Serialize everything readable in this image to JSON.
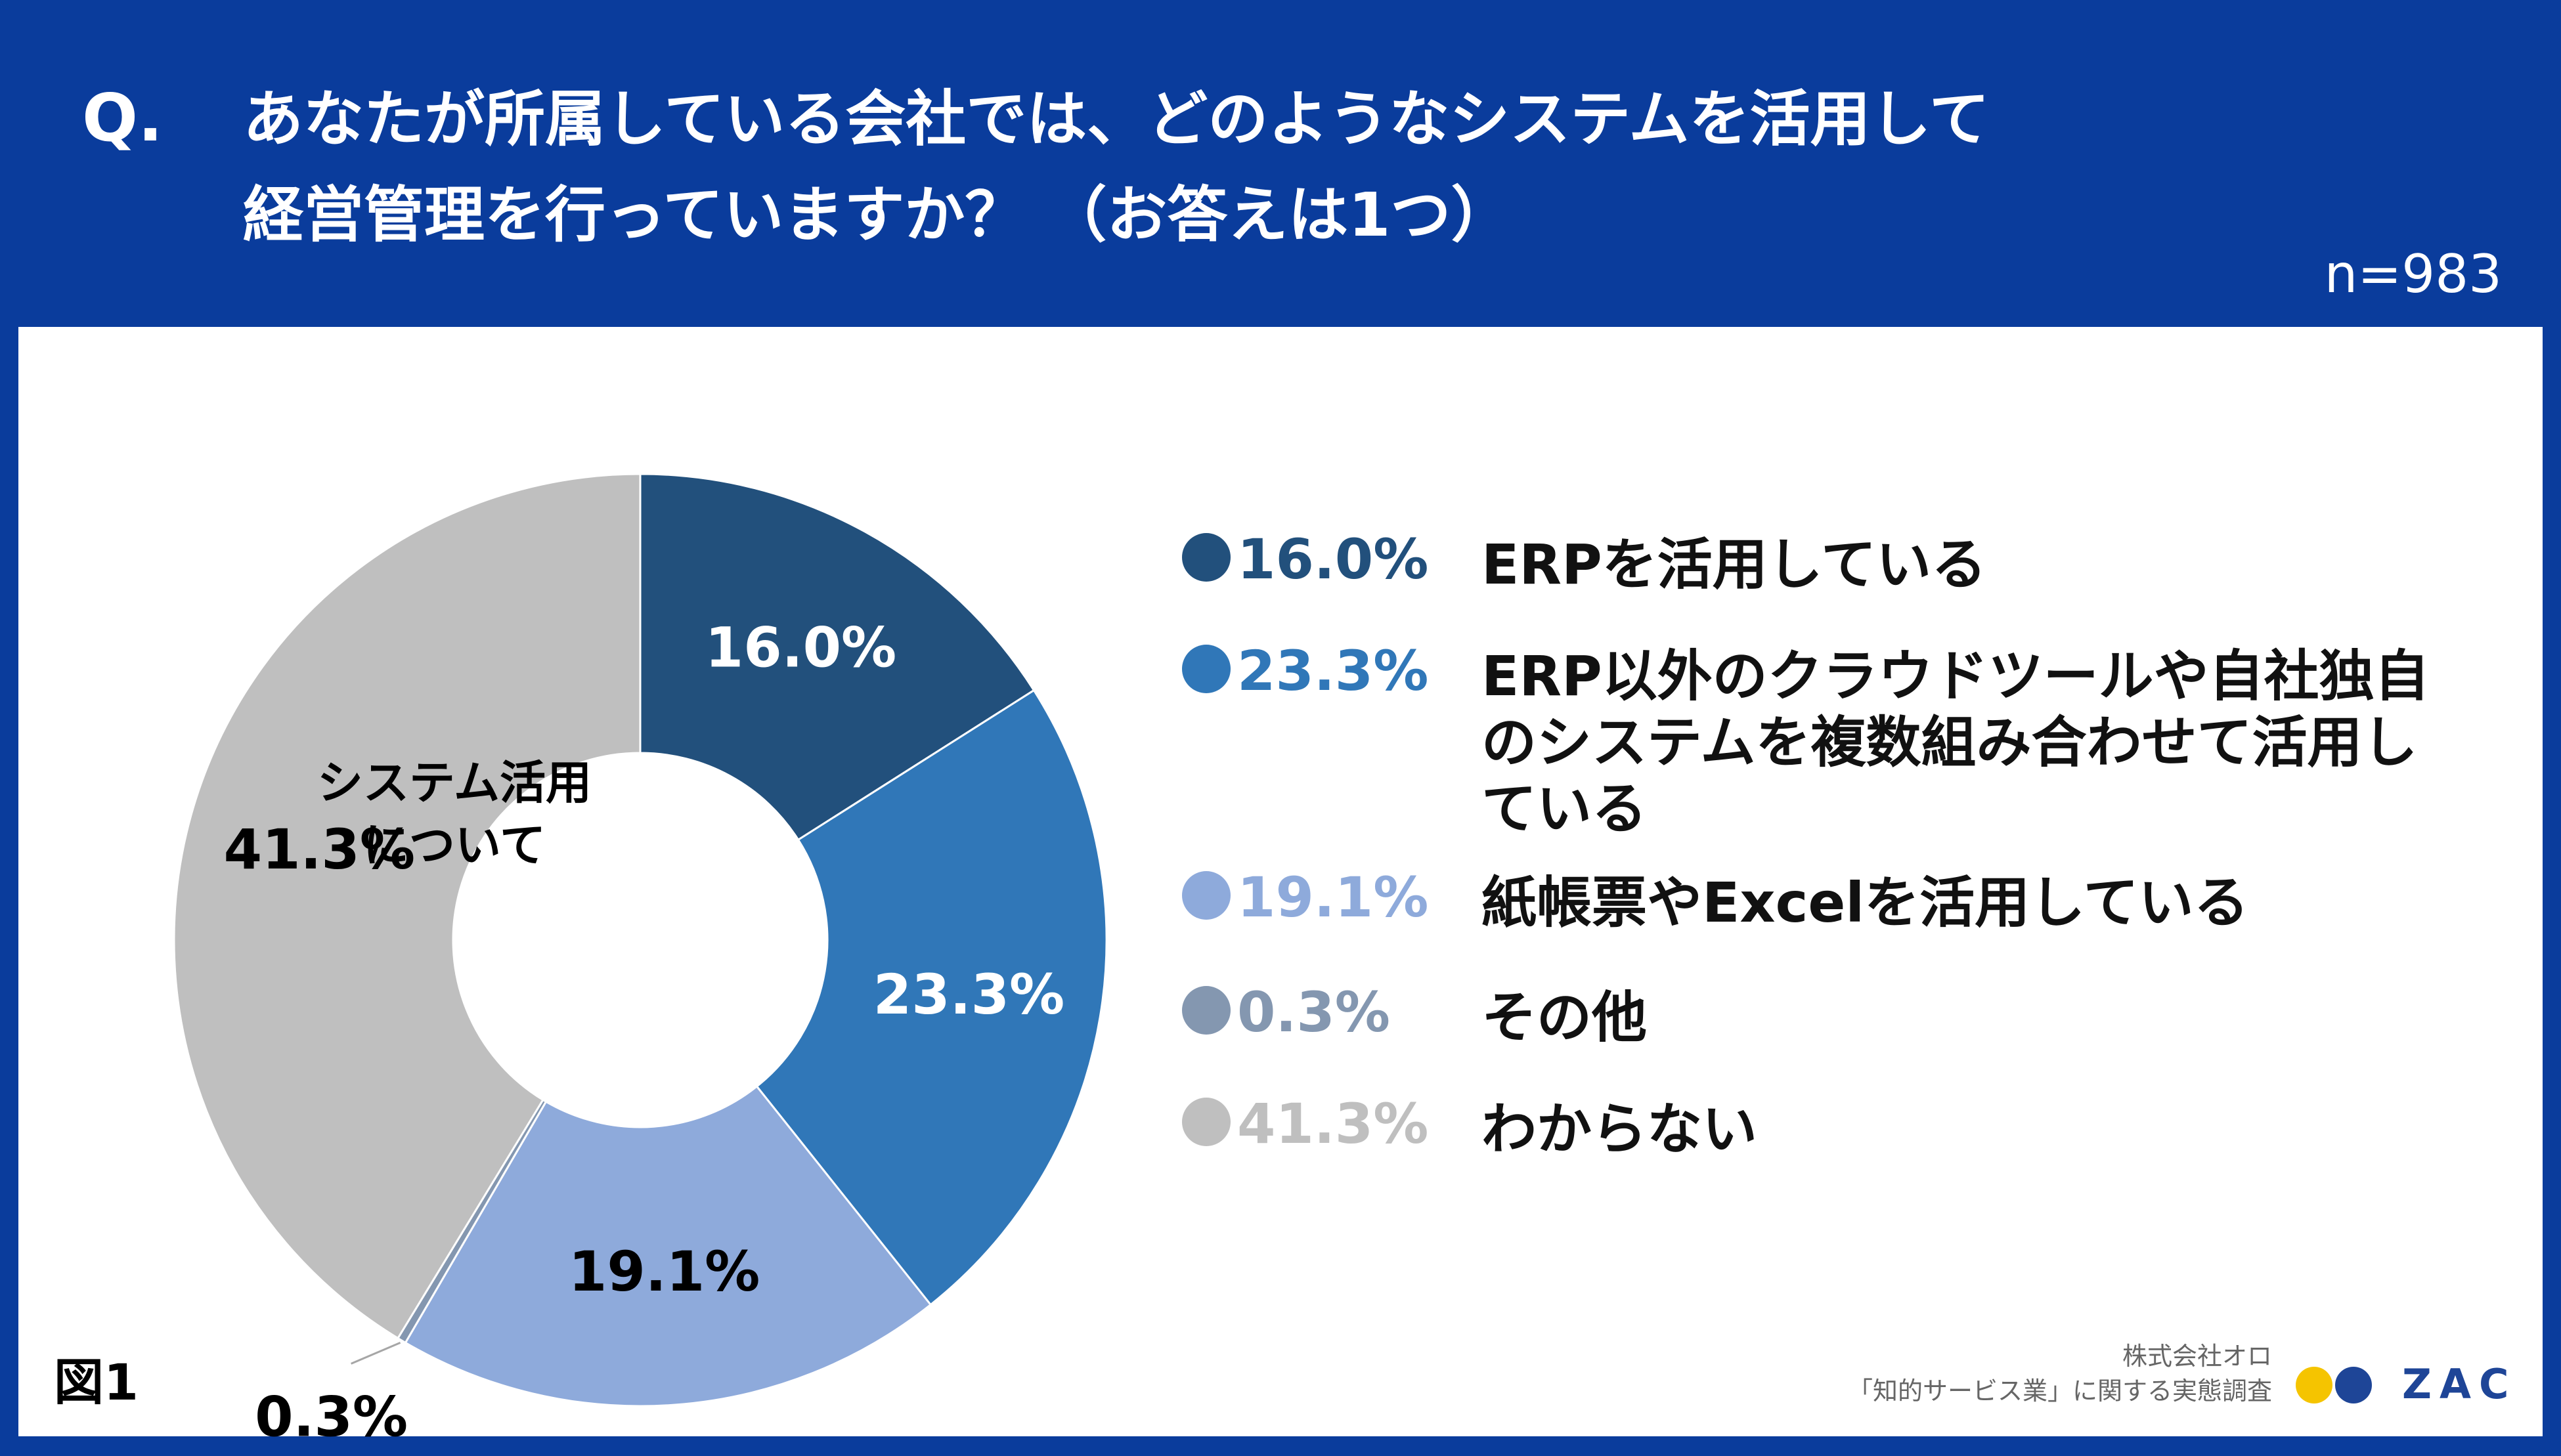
{
  "header": {
    "q_mark": "Q.",
    "question_line1": "あなたが所属している会社では、どのようなシステムを活用して",
    "question_line2": "経営管理を行っていますか？ （お答えは1つ）",
    "sample_size": "n=983"
  },
  "chart_data": {
    "type": "pie",
    "variant": "donut",
    "center_label_line1": "システム活用",
    "center_label_line2": "について",
    "categories": [
      "ERPを活用している",
      "ERP以外のクラウドツールや自社独自のシステムを複数組み合わせて活用している",
      "紙帳票やExcelを活用している",
      "その他",
      "わからない"
    ],
    "values": [
      16.0,
      23.3,
      19.1,
      0.3,
      41.3
    ],
    "value_labels": [
      "16.0%",
      "23.3%",
      "19.1%",
      "0.3%",
      "41.3%"
    ],
    "colors": [
      "#22507c",
      "#3077b8",
      "#8eaadb",
      "#8497b0",
      "#bfbfbf"
    ],
    "slice_label_colors": [
      "#ffffff",
      "#ffffff",
      "#000000",
      "#000000",
      "#000000"
    ],
    "legend_position": "right"
  },
  "legend": [
    {
      "pct": "16.0%",
      "label": "ERPを活用している"
    },
    {
      "pct": "23.3%",
      "label": "ERP以外のクラウドツールや自社独自のシステムを複数組み合わせて活用している"
    },
    {
      "pct": "19.1%",
      "label": "紙帳票やExcelを活用している"
    },
    {
      "pct": "0.3%",
      "label": "その他"
    },
    {
      "pct": "41.3%",
      "label": "わからない"
    }
  ],
  "footer": {
    "figure_label": "図1",
    "source_line1": "株式会社オロ",
    "source_line2": "「知的サービス業」に関する実態調査",
    "brand_name": "ZAC",
    "brand_colors": [
      "#f5c400",
      "#1e4597"
    ]
  }
}
